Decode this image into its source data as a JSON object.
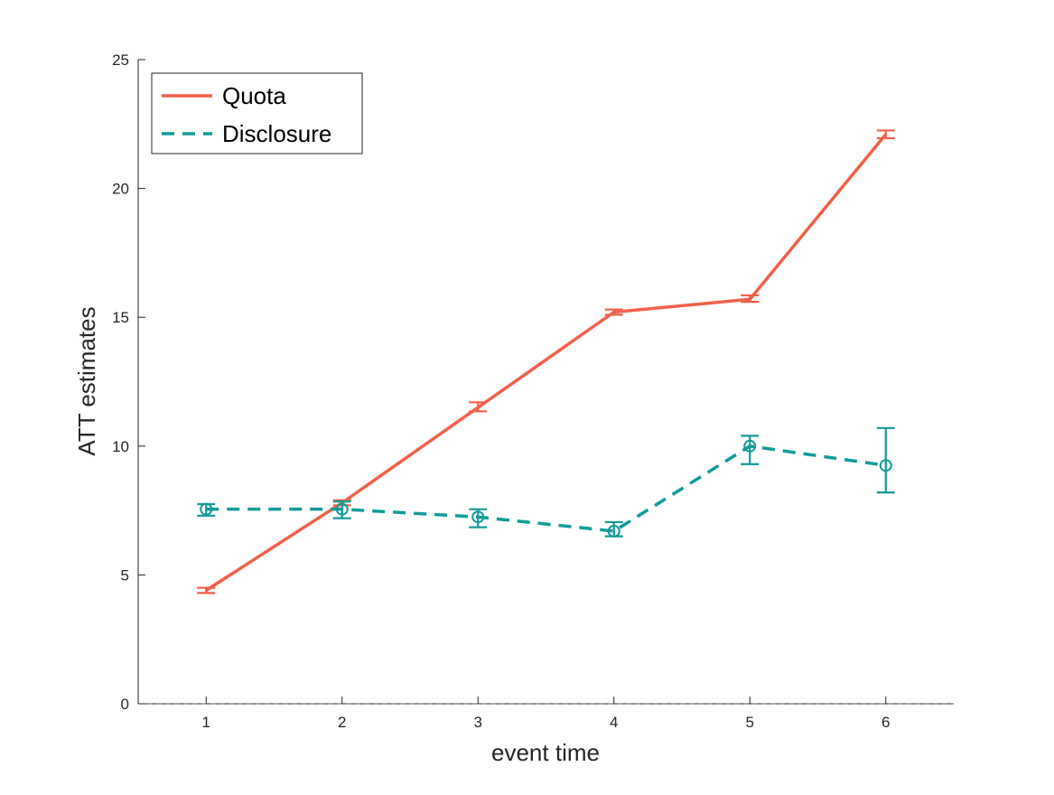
{
  "chart_data": {
    "type": "line",
    "title": "",
    "xlabel": "event time",
    "ylabel": "ATT estimates",
    "xlim": [
      0.5,
      6.5
    ],
    "ylim": [
      0,
      25
    ],
    "xticks": [
      1,
      2,
      3,
      4,
      5,
      6
    ],
    "yticks": [
      0,
      5,
      10,
      15,
      20,
      25
    ],
    "grid": false,
    "legend": {
      "placement": "top-left"
    },
    "baseline": {
      "y": 0,
      "style": "dashed"
    },
    "series": [
      {
        "name": "Quota",
        "color": "#f0604a",
        "style": "solid",
        "marker": "none",
        "x": [
          1,
          2,
          3,
          4,
          5,
          6
        ],
        "y": [
          4.4,
          7.8,
          11.5,
          15.2,
          15.7,
          22.1
        ],
        "err_low": [
          4.3,
          7.7,
          11.35,
          15.1,
          15.6,
          21.95
        ],
        "err_high": [
          4.5,
          7.9,
          11.7,
          15.3,
          15.85,
          22.25
        ]
      },
      {
        "name": "Disclosure",
        "color": "#109b98",
        "style": "dashed",
        "marker": "circle",
        "x": [
          1,
          2,
          3,
          4,
          5,
          6
        ],
        "y": [
          7.55,
          7.55,
          7.25,
          6.7,
          10.0,
          9.25
        ],
        "err_low": [
          7.3,
          7.2,
          6.85,
          6.5,
          9.3,
          8.2
        ],
        "err_high": [
          7.75,
          7.85,
          7.55,
          7.05,
          10.4,
          10.7
        ]
      }
    ]
  }
}
